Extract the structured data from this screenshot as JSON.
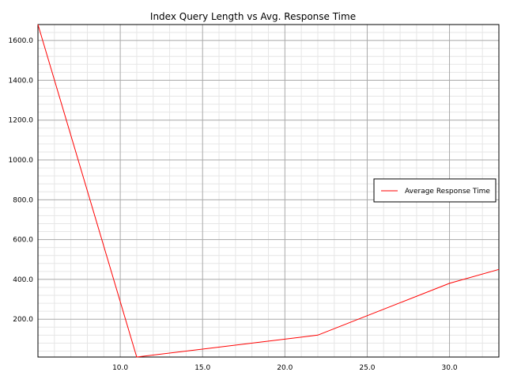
{
  "chart_data": {
    "type": "line",
    "title": "Index Query Length vs Avg. Response Time",
    "xlabel": "",
    "ylabel": "",
    "xlim": [
      5,
      33
    ],
    "ylim": [
      10,
      1680
    ],
    "x_ticks": [
      "10.0",
      "15.0",
      "20.0",
      "25.0",
      "30.0"
    ],
    "y_ticks": [
      "200.0",
      "400.0",
      "600.0",
      "800.0",
      "1000.0",
      "1200.0",
      "1400.0",
      "1600.0"
    ],
    "grid": true,
    "legend_position": "right",
    "series": [
      {
        "name": "Average Response Time",
        "color": "#ff0000",
        "x": [
          5,
          11,
          22,
          30,
          33
        ],
        "y": [
          1680,
          10,
          120,
          380,
          450
        ]
      }
    ]
  }
}
